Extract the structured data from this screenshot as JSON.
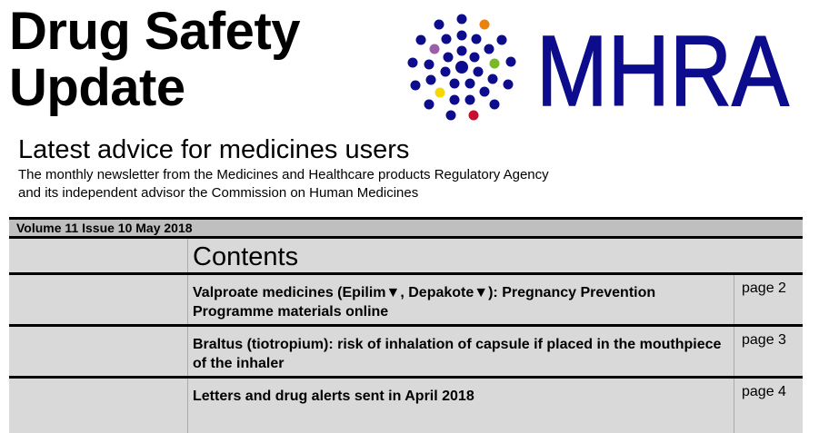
{
  "header": {
    "title_line1": "Drug Safety",
    "title_line2": "Update",
    "subtitle": "Latest advice for medicines users",
    "description_line1": "The monthly newsletter from the Medicines and Healthcare products Regulatory Agency",
    "description_line2": "and its independent advisor the Commission on Human Medicines"
  },
  "logo": {
    "text": "MHRA",
    "brand_color": "#0c0c8c",
    "accent_colors": [
      "#e8830f",
      "#9b5fa8",
      "#7ab828",
      "#f6d800",
      "#c8102e"
    ]
  },
  "issue": "Volume 11 Issue 10 May 2018",
  "contents": {
    "heading": "Contents",
    "items": [
      {
        "title": "Valproate medicines (Epilim▼, Depakote▼): Pregnancy Prevention Programme materials online",
        "page": "page 2"
      },
      {
        "title": "Braltus (tiotropium): risk of inhalation of capsule if placed in the mouthpiece of the inhaler",
        "page": "page 3"
      },
      {
        "title": "Letters and drug alerts sent in April 2018",
        "page": "page 4"
      }
    ]
  }
}
